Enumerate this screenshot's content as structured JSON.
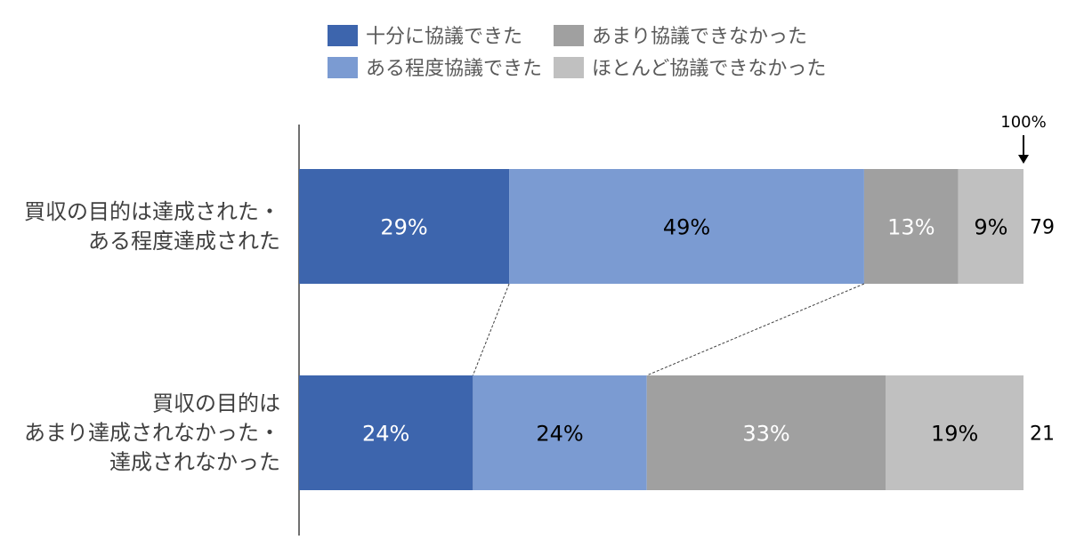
{
  "chart_data": {
    "type": "bar",
    "orientation": "horizontal",
    "stacked": true,
    "percent": true,
    "legend_position": "top",
    "grid": false,
    "reference_label": "100%",
    "series": [
      {
        "name": "十分に協議できた",
        "color": "#3d65ad",
        "label_color": "#ffffff",
        "values": [
          29,
          24
        ]
      },
      {
        "name": "ある程度協議できた",
        "color": "#7b9bd2",
        "label_color": "#000000",
        "values": [
          49,
          24
        ]
      },
      {
        "name": "あまり協議できなかった",
        "color": "#a0a0a0",
        "label_color": "#ffffff",
        "values": [
          13,
          33
        ]
      },
      {
        "name": "ほとんど協議できなかった",
        "color": "#c0c0c0",
        "label_color": "#000000",
        "values": [
          9,
          19
        ]
      }
    ],
    "categories": [
      {
        "lines": [
          "買収の目的は達成された・",
          "ある程度達成された"
        ],
        "n": "79"
      },
      {
        "lines": [
          "買収の目的は",
          "あまり達成されなかった・",
          "達成されなかった"
        ],
        "n": "21"
      }
    ]
  }
}
